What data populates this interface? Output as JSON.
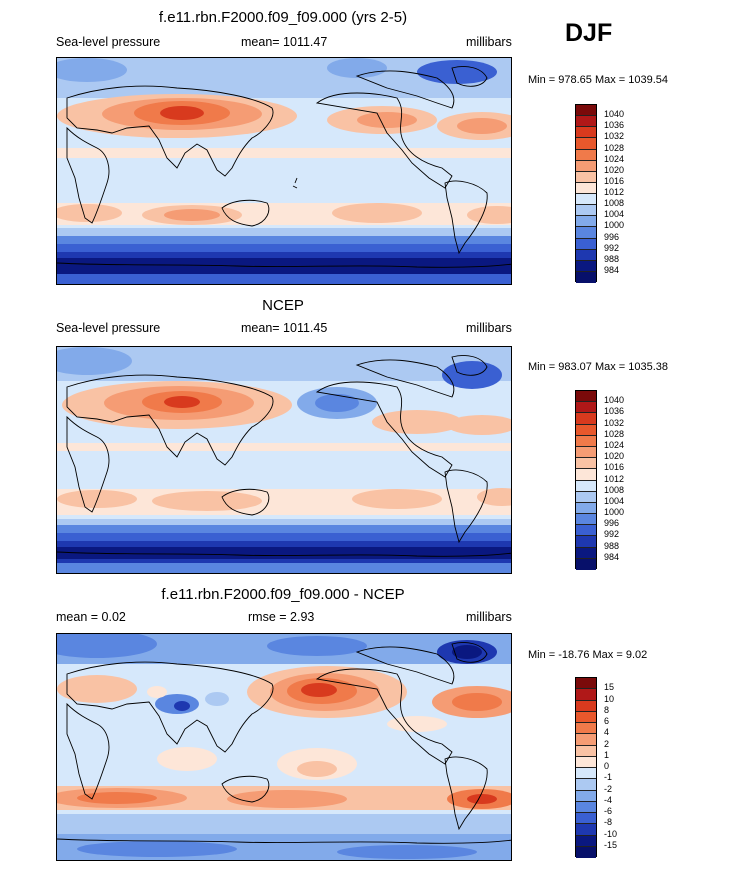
{
  "season": "DJF",
  "panels": [
    {
      "title": "f.e11.rbn.F2000.f09_f09.000 (yrs 2-5)",
      "left_label": "Sea-level pressure",
      "center_label": "mean= 1011.47",
      "right_label": "millibars",
      "minmax": "Min = 978.65 Max = 1039.54",
      "colorbar_labels": [
        "1040",
        "1036",
        "1032",
        "1028",
        "1024",
        "1020",
        "1016",
        "1012",
        "1008",
        "1004",
        "1000",
        "996",
        "992",
        "988",
        "984"
      ]
    },
    {
      "title": "NCEP",
      "left_label": "Sea-level pressure",
      "center_label": "mean= 1011.45",
      "right_label": "millibars",
      "minmax": "Min = 983.07 Max = 1035.38",
      "colorbar_labels": [
        "1040",
        "1036",
        "1032",
        "1028",
        "1024",
        "1020",
        "1016",
        "1012",
        "1008",
        "1004",
        "1000",
        "996",
        "992",
        "988",
        "984"
      ]
    },
    {
      "title": "f.e11.rbn.F2000.f09_f09.000 - NCEP",
      "left_label": "mean =   0.02",
      "center_label": "rmse =   2.93",
      "right_label": "millibars",
      "minmax": "Min = -18.76 Max =   9.02",
      "colorbar_labels": [
        "15",
        "10",
        "8",
        "6",
        "4",
        "2",
        "1",
        "0",
        "-1",
        "-2",
        "-4",
        "-6",
        "-8",
        "-10",
        "-15"
      ]
    }
  ],
  "colors": {
    "scale": [
      "#7a0a0a",
      "#b01818",
      "#d83a1e",
      "#e8582c",
      "#f07a4a",
      "#f59c74",
      "#f9c2a4",
      "#fde6d8",
      "#d6e8fb",
      "#acc9f2",
      "#82aaea",
      "#5a86e0",
      "#3a60d2",
      "#1e38b0",
      "#0a1880",
      "#07106a"
    ]
  },
  "icons": {
    "map": "world-map-coastlines"
  }
}
